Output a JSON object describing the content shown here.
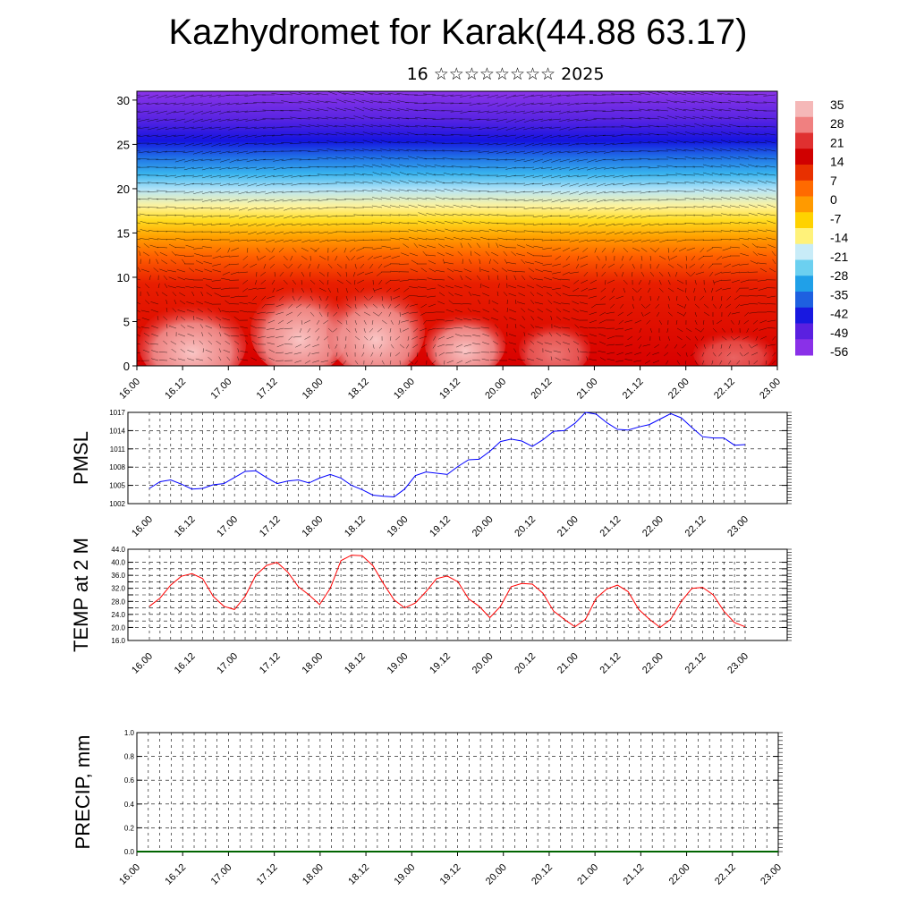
{
  "page": {
    "title": "Kazhydromet for Karak(44.88 63.17)",
    "subtitle": "16 ☆☆☆☆☆☆☆☆ 2025"
  },
  "colors": {
    "pmsl_line": "#0000ff",
    "temp_line": "#ff0000",
    "precip_line": "#006400",
    "colorbar": [
      "#f5b8b8",
      "#f08080",
      "#e03030",
      "#d00000",
      "#e83000",
      "#ff6a00",
      "#ff9a00",
      "#ffd200",
      "#fff27a",
      "#c8ecf8",
      "#6cd0f0",
      "#20a0e8",
      "#1e60e0",
      "#1818e0",
      "#5a20e0",
      "#8a30e8"
    ]
  },
  "chart_data": [
    {
      "type": "heatmap",
      "name": "cross-section",
      "x_ticks": [
        "16.00",
        "16.12",
        "17.00",
        "17.12",
        "18.00",
        "18.12",
        "19.00",
        "19.12",
        "20.00",
        "20.12",
        "21.00",
        "21.12",
        "22.00",
        "22.12",
        "23.00"
      ],
      "y_ticks": [
        "0",
        "5",
        "10",
        "15",
        "20",
        "25",
        "30"
      ],
      "ylim": [
        0,
        31
      ],
      "colorbar_labels": [
        "35",
        "28",
        "21",
        "14",
        "7",
        "0",
        "-7",
        "-14",
        "-21",
        "-28",
        "-35",
        "-42",
        "-49",
        "-56"
      ]
    },
    {
      "type": "line",
      "name": "pmsl",
      "ylabel": "PMSL",
      "ylim": [
        1002,
        1017
      ],
      "y_ticks": [
        "1017",
        "1014",
        "1011",
        "1008",
        "1005",
        "1002"
      ],
      "x_ticks": [
        "16.00",
        "16.12",
        "17.00",
        "17.12",
        "18.00",
        "18.12",
        "19.00",
        "19.12",
        "20.00",
        "20.12",
        "21.00",
        "21.12",
        "22.00",
        "22.12",
        "23.00"
      ],
      "series": [
        {
          "values": [
            1004.5,
            1005.6,
            1005.9,
            1005.2,
            1004.4,
            1004.5,
            1005.1,
            1005.3,
            1006.3,
            1007.3,
            1007.4,
            1006.3,
            1005.3,
            1005.7,
            1005.9,
            1005.4,
            1006.2,
            1006.8,
            1006.2,
            1005.0,
            1004.3,
            1003.4,
            1003.2,
            1003.1,
            1004.4,
            1006.6,
            1007.2,
            1007.0,
            1006.8,
            1008.1,
            1009.2,
            1009.3,
            1010.6,
            1012.2,
            1012.6,
            1012.3,
            1011.4,
            1012.5,
            1013.9,
            1014.0,
            1015.2,
            1017.0,
            1016.7,
            1015.3,
            1014.2,
            1014.1,
            1014.6,
            1015.0,
            1015.9,
            1016.8,
            1016.1,
            1014.5,
            1013.0,
            1012.8,
            1012.8,
            1011.6,
            1011.7
          ]
        }
      ]
    },
    {
      "type": "line",
      "name": "temp",
      "ylabel": "TEMP at 2 M",
      "ylim": [
        16,
        44
      ],
      "y_ticks": [
        "44.0",
        "40.0",
        "36.0",
        "32.0",
        "28.0",
        "24.0",
        "20.0",
        "16.0"
      ],
      "y_ticks_extra": [
        "38.0",
        "34.0",
        "30.0",
        "26.0",
        "22.0"
      ],
      "x_ticks": [
        "16.00",
        "16.12",
        "17.00",
        "17.12",
        "18.00",
        "18.12",
        "19.00",
        "19.12",
        "20.00",
        "20.12",
        "21.00",
        "21.12",
        "22.00",
        "22.12",
        "23.00"
      ],
      "series": [
        {
          "values": [
            26.5,
            29.0,
            33.0,
            35.7,
            36.5,
            35.0,
            29.5,
            26.5,
            25.5,
            29.5,
            36.0,
            39.0,
            40.0,
            37.0,
            32.5,
            30.0,
            27.0,
            32.0,
            40.5,
            42.2,
            42.0,
            39.0,
            33.5,
            28.5,
            26.0,
            27.5,
            31.0,
            35.0,
            35.8,
            34.0,
            28.8,
            26.5,
            23.0,
            26.5,
            32.5,
            33.5,
            33.3,
            30.5,
            25.0,
            22.5,
            20.2,
            22.5,
            29.0,
            31.8,
            33.0,
            31.0,
            25.5,
            22.5,
            20.0,
            22.5,
            28.0,
            32.0,
            32.3,
            30.0,
            25.0,
            21.5,
            20.2
          ]
        }
      ]
    },
    {
      "type": "line",
      "name": "precip",
      "ylabel": "PRECIP, mm",
      "ylim": [
        0,
        1
      ],
      "y_ticks": [
        "1.0",
        "0.8",
        "0.6",
        "0.4",
        "0.2",
        "0.0"
      ],
      "x_ticks": [
        "16.00",
        "16.12",
        "17.00",
        "17.12",
        "18.00",
        "18.12",
        "19.00",
        "19.12",
        "20.00",
        "20.12",
        "21.00",
        "21.12",
        "22.00",
        "22.12",
        "23.00"
      ],
      "series": [
        {
          "values": [
            0,
            0,
            0,
            0,
            0,
            0,
            0,
            0,
            0,
            0,
            0,
            0,
            0,
            0,
            0,
            0,
            0,
            0,
            0,
            0,
            0,
            0,
            0,
            0,
            0,
            0,
            0,
            0,
            0,
            0,
            0,
            0,
            0,
            0,
            0,
            0,
            0,
            0,
            0,
            0,
            0,
            0,
            0,
            0,
            0,
            0,
            0,
            0,
            0,
            0,
            0,
            0,
            0,
            0,
            0,
            0,
            0
          ]
        }
      ]
    }
  ]
}
